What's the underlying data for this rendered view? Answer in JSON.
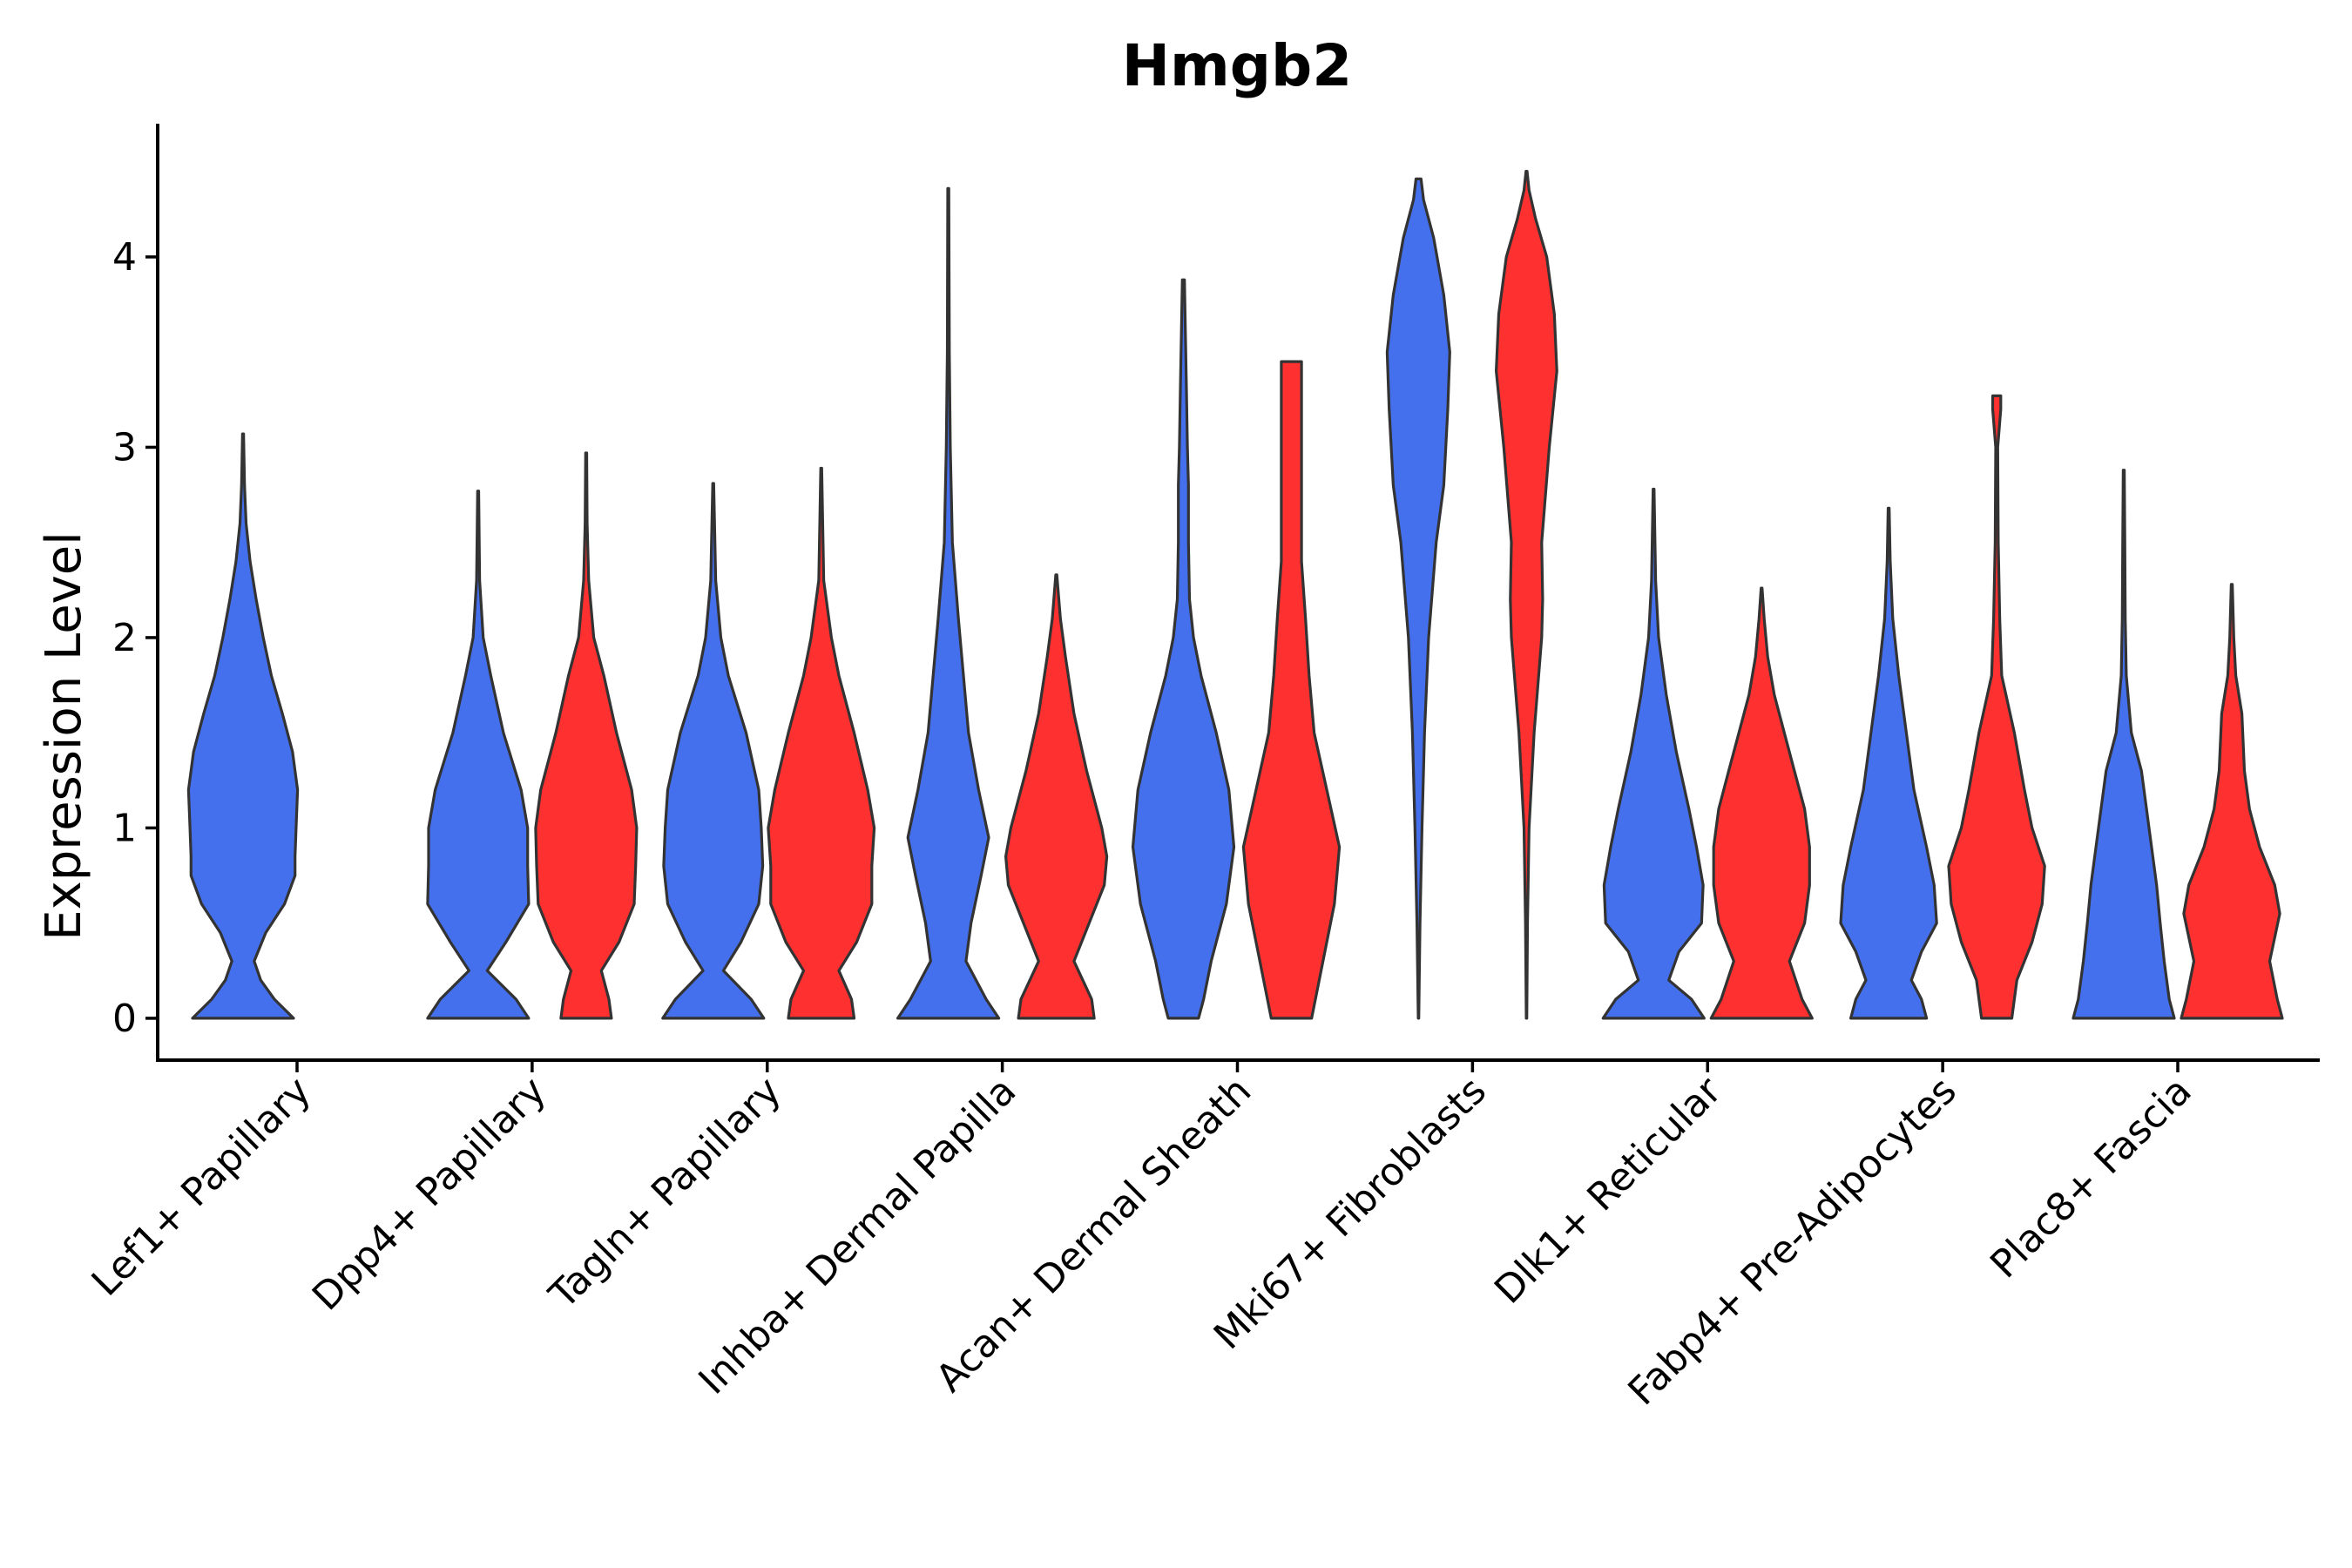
{
  "chart_data": {
    "type": "violin",
    "title": "Hmgb2",
    "xlabel": "",
    "ylabel": "Expression Level",
    "ylim": [
      -0.22,
      4.7
    ],
    "yticks": [
      0,
      1,
      2,
      3,
      4
    ],
    "colors": {
      "group_a": "#4470ED",
      "group_b": "#FF3030",
      "outline": "#333333"
    },
    "categories": [
      "Lef1+ Papillary",
      "Dpp4+ Papillary",
      "Tagln+ Papillary",
      "Inhba+ Dermal Papilla",
      "Acan+ Dermal Sheath",
      "Mki67+ Fibroblasts",
      "Dlk1+ Reticular",
      "Fabp4+ Pre-Adipocytes",
      "Plac8+ Fascia"
    ],
    "violins": [
      {
        "category": "Lef1+ Papillary",
        "group": "group_a",
        "max": 3.07,
        "profile": [
          [
            0,
            1.0
          ],
          [
            0.1,
            0.62
          ],
          [
            0.2,
            0.35
          ],
          [
            0.3,
            0.22
          ],
          [
            0.45,
            0.45
          ],
          [
            0.6,
            0.82
          ],
          [
            0.75,
            1.03
          ],
          [
            0.85,
            1.03
          ],
          [
            1.0,
            1.05
          ],
          [
            1.2,
            1.08
          ],
          [
            1.4,
            0.98
          ],
          [
            1.6,
            0.78
          ],
          [
            1.8,
            0.56
          ],
          [
            2.0,
            0.4
          ],
          [
            2.2,
            0.26
          ],
          [
            2.4,
            0.14
          ],
          [
            2.6,
            0.06
          ],
          [
            2.8,
            0.03
          ],
          [
            3.07,
            0.01
          ]
        ]
      },
      {
        "category": "Dpp4+ Papillary",
        "group": "group_a",
        "max": 2.77,
        "profile": [
          [
            0,
            1.0
          ],
          [
            0.1,
            0.75
          ],
          [
            0.25,
            0.18
          ],
          [
            0.4,
            0.55
          ],
          [
            0.6,
            1.0
          ],
          [
            0.8,
            0.98
          ],
          [
            1.0,
            0.98
          ],
          [
            1.2,
            0.85
          ],
          [
            1.5,
            0.5
          ],
          [
            1.8,
            0.25
          ],
          [
            2.0,
            0.1
          ],
          [
            2.3,
            0.03
          ],
          [
            2.77,
            0.01
          ]
        ]
      },
      {
        "category": "Dpp4+ Papillary",
        "group": "group_b",
        "max": 2.97,
        "profile": [
          [
            0,
            0.5
          ],
          [
            0.1,
            0.45
          ],
          [
            0.25,
            0.3
          ],
          [
            0.4,
            0.65
          ],
          [
            0.6,
            0.95
          ],
          [
            0.8,
            0.98
          ],
          [
            1.0,
            1.0
          ],
          [
            1.2,
            0.9
          ],
          [
            1.5,
            0.6
          ],
          [
            1.8,
            0.35
          ],
          [
            2.0,
            0.15
          ],
          [
            2.3,
            0.05
          ],
          [
            2.6,
            0.02
          ],
          [
            2.97,
            0.01
          ]
        ]
      },
      {
        "category": "Tagln+ Papillary",
        "group": "group_a",
        "max": 2.81,
        "profile": [
          [
            0,
            1.0
          ],
          [
            0.1,
            0.75
          ],
          [
            0.25,
            0.2
          ],
          [
            0.4,
            0.55
          ],
          [
            0.6,
            0.9
          ],
          [
            0.8,
            0.98
          ],
          [
            1.0,
            0.95
          ],
          [
            1.2,
            0.9
          ],
          [
            1.5,
            0.65
          ],
          [
            1.8,
            0.3
          ],
          [
            2.0,
            0.15
          ],
          [
            2.3,
            0.05
          ],
          [
            2.81,
            0.01
          ]
        ]
      },
      {
        "category": "Tagln+ Papillary",
        "group": "group_b",
        "max": 2.89,
        "profile": [
          [
            0,
            0.65
          ],
          [
            0.1,
            0.6
          ],
          [
            0.25,
            0.35
          ],
          [
            0.4,
            0.7
          ],
          [
            0.6,
            1.0
          ],
          [
            0.8,
            1.0
          ],
          [
            1.0,
            1.05
          ],
          [
            1.2,
            0.92
          ],
          [
            1.5,
            0.65
          ],
          [
            1.8,
            0.35
          ],
          [
            2.0,
            0.2
          ],
          [
            2.3,
            0.05
          ],
          [
            2.89,
            0.01
          ]
        ]
      },
      {
        "category": "Inhba+ Dermal Papilla",
        "group": "group_a",
        "max": 4.36,
        "profile": [
          [
            0,
            1.0
          ],
          [
            0.1,
            0.75
          ],
          [
            0.3,
            0.35
          ],
          [
            0.5,
            0.45
          ],
          [
            0.75,
            0.65
          ],
          [
            0.95,
            0.8
          ],
          [
            1.2,
            0.6
          ],
          [
            1.5,
            0.4
          ],
          [
            1.8,
            0.3
          ],
          [
            2.1,
            0.2
          ],
          [
            2.5,
            0.08
          ],
          [
            3.0,
            0.04
          ],
          [
            3.5,
            0.02
          ],
          [
            4.36,
            0.01
          ]
        ]
      },
      {
        "category": "Inhba+ Dermal Papilla",
        "group": "group_b",
        "max": 2.33,
        "profile": [
          [
            0,
            0.75
          ],
          [
            0.1,
            0.7
          ],
          [
            0.3,
            0.35
          ],
          [
            0.5,
            0.65
          ],
          [
            0.7,
            0.95
          ],
          [
            0.85,
            1.0
          ],
          [
            1.0,
            0.9
          ],
          [
            1.3,
            0.6
          ],
          [
            1.6,
            0.35
          ],
          [
            1.9,
            0.18
          ],
          [
            2.1,
            0.08
          ],
          [
            2.33,
            0.01
          ]
        ]
      },
      {
        "category": "Acan+ Dermal Sheath",
        "group": "group_a",
        "max": 3.88,
        "profile": [
          [
            0,
            0.3
          ],
          [
            0.1,
            0.4
          ],
          [
            0.3,
            0.55
          ],
          [
            0.6,
            0.85
          ],
          [
            0.9,
            1.0
          ],
          [
            1.2,
            0.9
          ],
          [
            1.5,
            0.65
          ],
          [
            1.8,
            0.35
          ],
          [
            2.0,
            0.2
          ],
          [
            2.2,
            0.12
          ],
          [
            2.5,
            0.1
          ],
          [
            2.8,
            0.1
          ],
          [
            3.0,
            0.08
          ],
          [
            3.3,
            0.06
          ],
          [
            3.6,
            0.04
          ],
          [
            3.88,
            0.02
          ]
        ]
      },
      {
        "category": "Acan+ Dermal Sheath",
        "group": "group_b",
        "max": 3.45,
        "profile": [
          [
            0,
            0.4
          ],
          [
            0.2,
            0.55
          ],
          [
            0.4,
            0.7
          ],
          [
            0.6,
            0.85
          ],
          [
            0.9,
            0.95
          ],
          [
            1.2,
            0.7
          ],
          [
            1.5,
            0.45
          ],
          [
            1.8,
            0.35
          ],
          [
            2.1,
            0.28
          ],
          [
            2.4,
            0.2
          ],
          [
            2.7,
            0.2
          ],
          [
            3.0,
            0.2
          ],
          [
            3.2,
            0.2
          ],
          [
            3.45,
            0.2
          ]
        ]
      },
      {
        "category": "Mki67+ Fibroblasts",
        "group": "group_a",
        "max": 4.41,
        "profile": [
          [
            0,
            0.005
          ],
          [
            0.5,
            0.03
          ],
          [
            1.0,
            0.07
          ],
          [
            1.5,
            0.12
          ],
          [
            2.0,
            0.2
          ],
          [
            2.5,
            0.35
          ],
          [
            2.8,
            0.5
          ],
          [
            3.2,
            0.58
          ],
          [
            3.5,
            0.62
          ],
          [
            3.8,
            0.5
          ],
          [
            4.1,
            0.3
          ],
          [
            4.3,
            0.1
          ],
          [
            4.41,
            0.05
          ]
        ]
      },
      {
        "category": "Mki67+ Fibroblasts",
        "group": "group_b",
        "max": 4.45,
        "profile": [
          [
            0,
            0.005
          ],
          [
            0.5,
            0.02
          ],
          [
            1.0,
            0.05
          ],
          [
            1.5,
            0.15
          ],
          [
            2.0,
            0.3
          ],
          [
            2.2,
            0.32
          ],
          [
            2.5,
            0.3
          ],
          [
            3.0,
            0.45
          ],
          [
            3.4,
            0.6
          ],
          [
            3.7,
            0.55
          ],
          [
            4.0,
            0.4
          ],
          [
            4.2,
            0.18
          ],
          [
            4.35,
            0.05
          ],
          [
            4.45,
            0.01
          ]
        ]
      },
      {
        "category": "Dlk1+ Reticular",
        "group": "group_a",
        "max": 2.78,
        "profile": [
          [
            0,
            1.0
          ],
          [
            0.1,
            0.75
          ],
          [
            0.2,
            0.3
          ],
          [
            0.35,
            0.5
          ],
          [
            0.5,
            0.95
          ],
          [
            0.7,
            0.98
          ],
          [
            0.9,
            0.85
          ],
          [
            1.1,
            0.7
          ],
          [
            1.4,
            0.45
          ],
          [
            1.7,
            0.25
          ],
          [
            2.0,
            0.1
          ],
          [
            2.3,
            0.04
          ],
          [
            2.78,
            0.01
          ]
        ]
      },
      {
        "category": "Dlk1+ Reticular",
        "group": "group_b",
        "max": 2.26,
        "profile": [
          [
            0,
            1.0
          ],
          [
            0.1,
            0.8
          ],
          [
            0.3,
            0.55
          ],
          [
            0.5,
            0.85
          ],
          [
            0.7,
            0.95
          ],
          [
            0.9,
            0.95
          ],
          [
            1.1,
            0.85
          ],
          [
            1.3,
            0.65
          ],
          [
            1.5,
            0.45
          ],
          [
            1.7,
            0.25
          ],
          [
            1.9,
            0.12
          ],
          [
            2.1,
            0.05
          ],
          [
            2.26,
            0.01
          ]
        ]
      },
      {
        "category": "Fabp4+ Pre-Adipocytes",
        "group": "group_a",
        "max": 2.68,
        "profile": [
          [
            0,
            0.75
          ],
          [
            0.1,
            0.65
          ],
          [
            0.2,
            0.45
          ],
          [
            0.35,
            0.65
          ],
          [
            0.5,
            0.95
          ],
          [
            0.7,
            0.9
          ],
          [
            0.9,
            0.75
          ],
          [
            1.2,
            0.5
          ],
          [
            1.5,
            0.35
          ],
          [
            1.8,
            0.2
          ],
          [
            2.1,
            0.08
          ],
          [
            2.4,
            0.03
          ],
          [
            2.68,
            0.01
          ]
        ]
      },
      {
        "category": "Fabp4+ Pre-Adipocytes",
        "group": "group_b",
        "max": 3.27,
        "profile": [
          [
            0,
            0.3
          ],
          [
            0.2,
            0.4
          ],
          [
            0.4,
            0.7
          ],
          [
            0.6,
            0.9
          ],
          [
            0.8,
            0.95
          ],
          [
            1.0,
            0.7
          ],
          [
            1.2,
            0.55
          ],
          [
            1.5,
            0.35
          ],
          [
            1.8,
            0.1
          ],
          [
            2.1,
            0.06
          ],
          [
            2.5,
            0.03
          ],
          [
            3.0,
            0.02
          ],
          [
            3.2,
            0.08
          ],
          [
            3.27,
            0.08
          ]
        ]
      },
      {
        "category": "Plac8+ Fascia",
        "group": "group_a",
        "max": 2.88,
        "profile": [
          [
            0,
            1.0
          ],
          [
            0.1,
            0.9
          ],
          [
            0.3,
            0.8
          ],
          [
            0.5,
            0.72
          ],
          [
            0.7,
            0.65
          ],
          [
            0.9,
            0.55
          ],
          [
            1.1,
            0.45
          ],
          [
            1.3,
            0.35
          ],
          [
            1.5,
            0.15
          ],
          [
            1.8,
            0.05
          ],
          [
            2.1,
            0.03
          ],
          [
            2.5,
            0.02
          ],
          [
            2.88,
            0.01
          ]
        ]
      },
      {
        "category": "Plac8+ Fascia",
        "group": "group_b",
        "max": 2.28,
        "profile": [
          [
            0,
            1.0
          ],
          [
            0.1,
            0.9
          ],
          [
            0.3,
            0.75
          ],
          [
            0.55,
            0.95
          ],
          [
            0.7,
            0.85
          ],
          [
            0.9,
            0.55
          ],
          [
            1.1,
            0.35
          ],
          [
            1.3,
            0.25
          ],
          [
            1.6,
            0.2
          ],
          [
            1.8,
            0.08
          ],
          [
            2.0,
            0.04
          ],
          [
            2.28,
            0.01
          ]
        ]
      }
    ]
  }
}
